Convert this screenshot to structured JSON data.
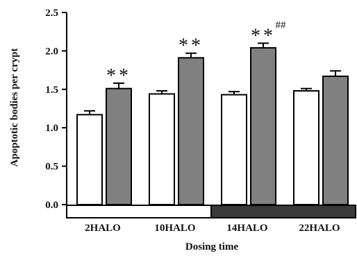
{
  "chart_data": {
    "type": "bar",
    "title": "",
    "xlabel": "Dosing time",
    "ylabel": "Apoptotic bodies per crypt",
    "ylim": [
      0,
      2.5
    ],
    "yticks": [
      "0.0",
      "0.5",
      "1.0",
      "1.5",
      "2.0",
      "2.5"
    ],
    "grid": false,
    "categories": [
      "2HALO",
      "10HALO",
      "14HALO",
      "22HALO"
    ],
    "series": [
      {
        "values": [
          1.17,
          1.44,
          1.43,
          1.48
        ],
        "errors": [
          0.05,
          0.04,
          0.04,
          0.03
        ],
        "color": "#ffffff"
      },
      {
        "values": [
          1.51,
          1.91,
          2.04,
          1.67
        ],
        "errors": [
          0.07,
          0.06,
          0.06,
          0.07
        ],
        "color": "#808080"
      }
    ],
    "annotations": [
      {
        "category": "2HALO",
        "series": 1,
        "text": "**"
      },
      {
        "category": "10HALO",
        "series": 1,
        "text": "**"
      },
      {
        "category": "14HALO",
        "series": 1,
        "text": "**"
      },
      {
        "category": "14HALO",
        "series": 1,
        "text": "##"
      }
    ],
    "light_dark_bar": {
      "light_color": "#ffffff",
      "dark_color": "#3a3a3a"
    }
  }
}
